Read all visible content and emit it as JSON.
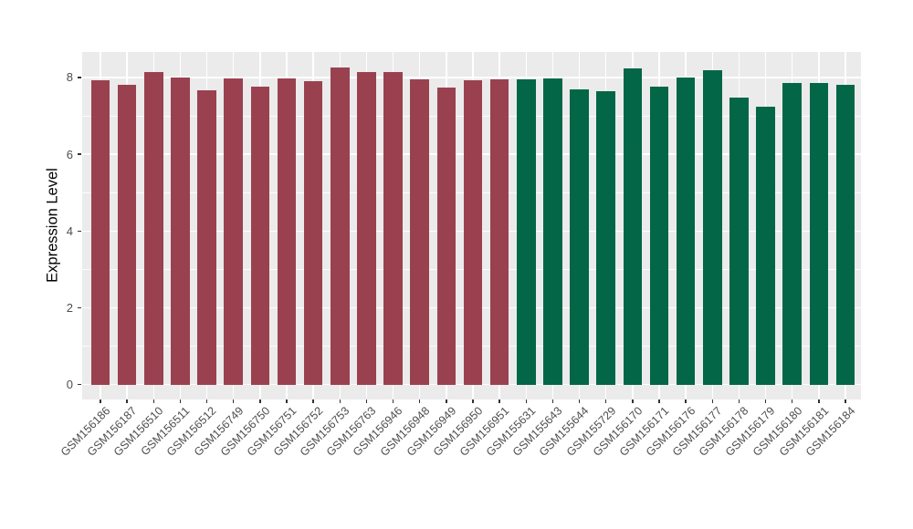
{
  "chart_data": {
    "type": "bar",
    "title": "",
    "xlabel": "",
    "ylabel": "Expression Level",
    "ylim": [
      0,
      8.66
    ],
    "grid": "on",
    "legend": "none",
    "yticks": [
      0,
      2,
      4,
      6,
      8
    ],
    "yticks_minor": [
      1,
      3,
      5,
      7
    ],
    "categories": [
      "GSM156186",
      "GSM156187",
      "GSM156510",
      "GSM156511",
      "GSM156512",
      "GSM156749",
      "GSM156750",
      "GSM156751",
      "GSM156752",
      "GSM156753",
      "GSM156763",
      "GSM156946",
      "GSM156948",
      "GSM156949",
      "GSM156950",
      "GSM156951",
      "GSM155631",
      "GSM155643",
      "GSM155644",
      "GSM155729",
      "GSM156170",
      "GSM156171",
      "GSM156176",
      "GSM156177",
      "GSM156178",
      "GSM156179",
      "GSM156180",
      "GSM156181",
      "GSM156184"
    ],
    "values": [
      7.93,
      7.81,
      8.15,
      8.0,
      7.66,
      7.98,
      7.77,
      7.98,
      7.9,
      8.27,
      8.14,
      8.14,
      7.95,
      7.73,
      7.93,
      7.95,
      7.94,
      7.98,
      7.7,
      7.64,
      8.23,
      7.76,
      8.0,
      8.19,
      7.47,
      7.24,
      7.85,
      7.86,
      7.8
    ],
    "bar_colors": [
      "#9A4150",
      "#9A4150",
      "#9A4150",
      "#9A4150",
      "#9A4150",
      "#9A4150",
      "#9A4150",
      "#9A4150",
      "#9A4150",
      "#9A4150",
      "#9A4150",
      "#9A4150",
      "#9A4150",
      "#9A4150",
      "#9A4150",
      "#9A4150",
      "#026647",
      "#026647",
      "#026647",
      "#026647",
      "#026647",
      "#026647",
      "#026647",
      "#026647",
      "#026647",
      "#026647",
      "#026647",
      "#026647",
      "#026647"
    ]
  },
  "colors": {
    "group1_maroon": "#9A4150",
    "group2_green": "#026647",
    "panel_background": "#EBEBEB",
    "gridline": "#FFFFFF",
    "tick_text": "#4D4D4D",
    "axis_title_text": "#000000",
    "page_background": "#FFFFFF"
  }
}
